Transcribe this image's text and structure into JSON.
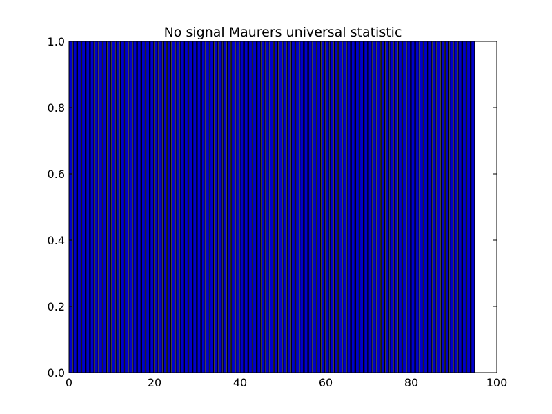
{
  "chart_data": {
    "type": "bar",
    "title": "No signal Maurers universal statistic",
    "xlabel": "",
    "ylabel": "",
    "xlim": [
      0,
      100
    ],
    "ylim": [
      0,
      1.0
    ],
    "x_ticks": [
      "0",
      "20",
      "40",
      "60",
      "80",
      "100"
    ],
    "y_ticks": [
      "0.0",
      "0.2",
      "0.4",
      "0.6",
      "0.8",
      "1.0"
    ],
    "grid": false,
    "bar_width": 0.8,
    "categories": [
      0,
      1,
      2,
      3,
      4,
      5,
      6,
      7,
      8,
      9,
      10,
      11,
      12,
      13,
      14,
      15,
      16,
      17,
      18,
      19,
      20,
      21,
      22,
      23,
      24,
      25,
      26,
      27,
      28,
      29,
      30,
      31,
      32,
      33,
      34,
      35,
      36,
      37,
      38,
      39,
      40,
      41,
      42,
      43,
      44,
      45,
      46,
      47,
      48,
      49,
      50,
      51,
      52,
      53,
      54,
      55,
      56,
      57,
      58,
      59,
      60,
      61,
      62,
      63,
      64,
      65,
      66,
      67,
      68,
      69,
      70,
      71,
      72,
      73,
      74,
      75,
      76,
      77,
      78,
      79,
      80,
      81,
      82,
      83,
      84,
      85,
      86,
      87,
      88,
      89,
      90,
      91,
      92,
      93,
      94
    ],
    "values": [
      1,
      1,
      1,
      1,
      1,
      1,
      1,
      1,
      1,
      1,
      1,
      1,
      1,
      1,
      1,
      1,
      1,
      1,
      1,
      1,
      1,
      1,
      1,
      1,
      1,
      1,
      1,
      1,
      1,
      1,
      1,
      1,
      1,
      1,
      1,
      1,
      1,
      1,
      1,
      1,
      1,
      1,
      1,
      1,
      1,
      1,
      1,
      1,
      1,
      1,
      1,
      1,
      1,
      1,
      1,
      1,
      1,
      1,
      1,
      1,
      1,
      1,
      1,
      1,
      1,
      1,
      1,
      1,
      1,
      1,
      1,
      1,
      1,
      1,
      1,
      1,
      1,
      1,
      1,
      1,
      1,
      1,
      1,
      1,
      1,
      1,
      1,
      1,
      1,
      1,
      1,
      1,
      1,
      1,
      1
    ],
    "colors": {
      "bar_fill": "#0000cc",
      "bar_edge": "#000000"
    }
  }
}
